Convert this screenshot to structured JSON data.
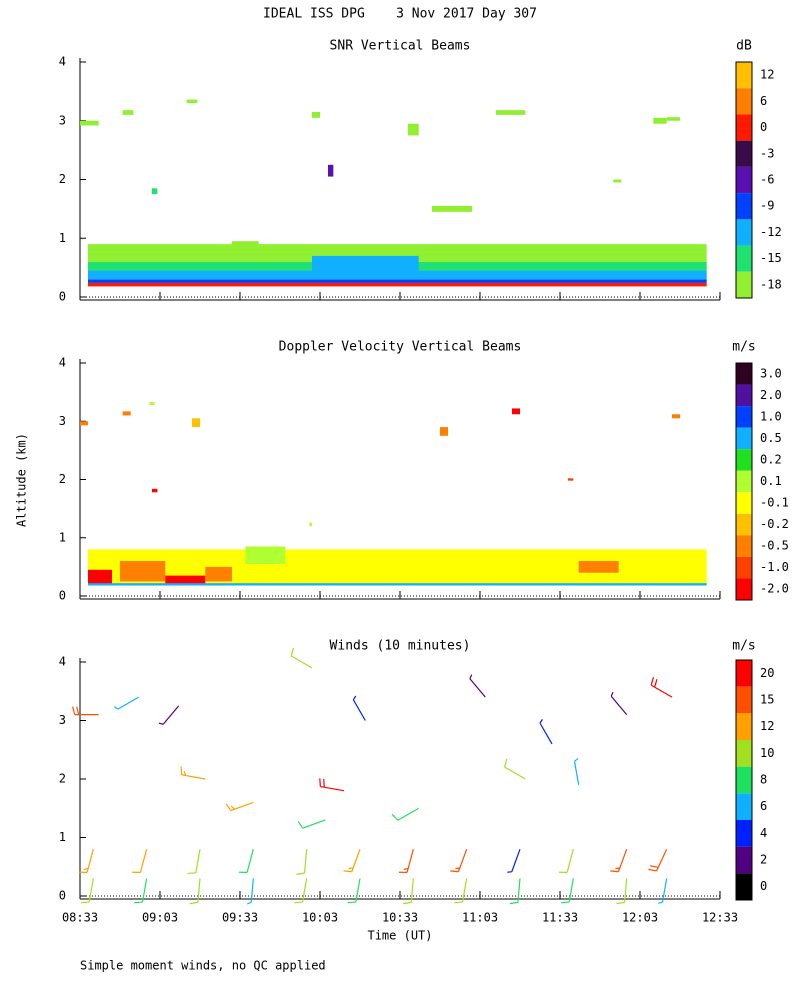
{
  "chart_data": {
    "type": "multi-panel",
    "title": "IDEAL ISS DPG    3 Nov 2017 Day 307",
    "ylabel": "Altitude (km)",
    "xlabel": "Time (UT)",
    "note": "Simple moment winds, no QC applied",
    "xlim": [
      513,
      753
    ],
    "xticks": [
      {
        "value": 513,
        "label": "08:33"
      },
      {
        "value": 543,
        "label": "09:03"
      },
      {
        "value": 573,
        "label": "09:33"
      },
      {
        "value": 603,
        "label": "10:03"
      },
      {
        "value": 633,
        "label": "10:33"
      },
      {
        "value": 663,
        "label": "11:03"
      },
      {
        "value": 693,
        "label": "11:33"
      },
      {
        "value": 723,
        "label": "12:03"
      },
      {
        "value": 753,
        "label": "12:33"
      }
    ],
    "panels": [
      {
        "type": "heatmap",
        "title": "SNR Vertical Beams",
        "unit": "dB",
        "ylim": [
          0,
          4
        ],
        "yticks": [
          0,
          1,
          2,
          3,
          4
        ],
        "colorbar": {
          "levels": [
            12,
            6,
            0,
            -3,
            -6,
            -9,
            -12,
            -15,
            -18
          ],
          "colors": [
            "#ffbf00",
            "#ff7f00",
            "#ff1a00",
            "#3a0a4a",
            "#5a10b0",
            "#0040ff",
            "#10b0ff",
            "#20e070",
            "#90f030"
          ]
        },
        "cells": [
          {
            "t": [
              516,
              748
            ],
            "alt": [
              0.18,
              0.24
            ],
            "value": 2
          },
          {
            "t": [
              516,
              748
            ],
            "alt": [
              0.24,
              0.3
            ],
            "value": -7
          },
          {
            "t": [
              516,
              748
            ],
            "alt": [
              0.3,
              0.45
            ],
            "value": -10
          },
          {
            "t": [
              516,
              748
            ],
            "alt": [
              0.45,
              0.6
            ],
            "value": -13
          },
          {
            "t": [
              516,
              748
            ],
            "alt": [
              0.6,
              0.75
            ],
            "value": -16
          },
          {
            "t": [
              516,
              748
            ],
            "alt": [
              0.75,
              0.9
            ],
            "value": -17
          },
          {
            "t": [
              600,
              640
            ],
            "alt": [
              0.4,
              0.7
            ],
            "value": -10
          },
          {
            "t": [
              570,
              580
            ],
            "alt": [
              0.8,
              0.95
            ],
            "value": -17
          },
          {
            "t": [
              513,
              520
            ],
            "alt": [
              2.92,
              3.0
            ],
            "value": -17
          },
          {
            "t": [
              529,
              533
            ],
            "alt": [
              3.1,
              3.18
            ],
            "value": -17
          },
          {
            "t": [
              540,
              542
            ],
            "alt": [
              1.75,
              1.85
            ],
            "value": -14
          },
          {
            "t": [
              553,
              557
            ],
            "alt": [
              3.3,
              3.36
            ],
            "value": -17
          },
          {
            "t": [
              600,
              603
            ],
            "alt": [
              3.05,
              3.15
            ],
            "value": -17
          },
          {
            "t": [
              606,
              608
            ],
            "alt": [
              2.05,
              2.25
            ],
            "value": -5
          },
          {
            "t": [
              636,
              640
            ],
            "alt": [
              2.75,
              2.95
            ],
            "value": -16
          },
          {
            "t": [
              645,
              660
            ],
            "alt": [
              1.45,
              1.55
            ],
            "value": -17
          },
          {
            "t": [
              669,
              680
            ],
            "alt": [
              3.1,
              3.18
            ],
            "value": -17
          },
          {
            "t": [
              713,
              716
            ],
            "alt": [
              1.95,
              2.0
            ],
            "value": -17
          },
          {
            "t": [
              728,
              733
            ],
            "alt": [
              2.95,
              3.05
            ],
            "value": -17
          },
          {
            "t": [
              733,
              738
            ],
            "alt": [
              3.0,
              3.06
            ],
            "value": -17
          }
        ]
      },
      {
        "type": "heatmap",
        "title": "Doppler Velocity Vertical Beams",
        "unit": "m/s",
        "ylim": [
          0,
          4
        ],
        "yticks": [
          0,
          1,
          2,
          3,
          4
        ],
        "colorbar": {
          "levels": [
            3.0,
            2.0,
            1.0,
            0.5,
            0.2,
            0.1,
            -0.1,
            -0.2,
            -0.5,
            -1.0,
            -2.0
          ],
          "labels": [
            "3.0",
            "2.0",
            "1.0",
            "0.5",
            "0.2",
            "0.1",
            "-0.1",
            "-0.2",
            "-0.5",
            "-1.0",
            "-2.0"
          ],
          "colors": [
            "#300020",
            "#5010a0",
            "#0040ff",
            "#10b0ff",
            "#20e020",
            "#b0ff30",
            "#ffff00",
            "#ffc000",
            "#ff8000",
            "#ff4000",
            "#ff0000"
          ]
        },
        "cells": [
          {
            "t": [
              516,
              748
            ],
            "alt": [
              0.2,
              0.8
            ],
            "value": 0
          },
          {
            "t": [
              516,
              525
            ],
            "alt": [
              0.2,
              0.45
            ],
            "value": -1.5
          },
          {
            "t": [
              528,
              545
            ],
            "alt": [
              0.25,
              0.6
            ],
            "value": -0.3
          },
          {
            "t": [
              545,
              560
            ],
            "alt": [
              0.2,
              0.35
            ],
            "value": -1.5
          },
          {
            "t": [
              560,
              570
            ],
            "alt": [
              0.25,
              0.5
            ],
            "value": -0.3
          },
          {
            "t": [
              575,
              590
            ],
            "alt": [
              0.55,
              0.85
            ],
            "value": 0.15
          },
          {
            "t": [
              700,
              715
            ],
            "alt": [
              0.4,
              0.6
            ],
            "value": -0.3
          },
          {
            "t": [
              516,
              748
            ],
            "alt": [
              0.18,
              0.22
            ],
            "value": 0.7
          },
          {
            "t": [
              513,
              516
            ],
            "alt": [
              2.93,
              3.0
            ],
            "value": -0.3
          },
          {
            "t": [
              529,
              532
            ],
            "alt": [
              3.1,
              3.17
            ],
            "value": -0.3
          },
          {
            "t": [
              539,
              541
            ],
            "alt": [
              3.28,
              3.33
            ],
            "value": 0.15
          },
          {
            "t": [
              540,
              542
            ],
            "alt": [
              1.78,
              1.84
            ],
            "value": -1.5
          },
          {
            "t": [
              555,
              558
            ],
            "alt": [
              2.9,
              3.05
            ],
            "value": -0.15
          },
          {
            "t": [
              599,
              600
            ],
            "alt": [
              1.2,
              1.26
            ],
            "value": 0.15
          },
          {
            "t": [
              648,
              651
            ],
            "alt": [
              2.75,
              2.9
            ],
            "value": -0.3
          },
          {
            "t": [
              675,
              678
            ],
            "alt": [
              3.12,
              3.22
            ],
            "value": -1.5
          },
          {
            "t": [
              696,
              698
            ],
            "alt": [
              1.98,
              2.02
            ],
            "value": -0.7
          },
          {
            "t": [
              735,
              738
            ],
            "alt": [
              3.05,
              3.12
            ],
            "value": -0.3
          }
        ]
      },
      {
        "type": "barbs",
        "title": "Winds (10 minutes)",
        "unit": "m/s",
        "ylim": [
          0,
          4
        ],
        "yticks": [
          0,
          1,
          2,
          3,
          4
        ],
        "colorbar": {
          "levels": [
            20,
            15,
            12,
            10,
            8,
            6,
            4,
            2,
            0
          ],
          "colors": [
            "#ff0000",
            "#ff5000",
            "#ffa000",
            "#a0e020",
            "#20e060",
            "#10b0ff",
            "#0020ff",
            "#500080",
            "#000000"
          ]
        },
        "barbs": [
          {
            "t": [
              518
            ],
            "alt": 0.3,
            "speed": 10,
            "direction": 190
          },
          {
            "t": [
              518
            ],
            "alt": 0.8,
            "speed": 13,
            "direction": 195
          },
          {
            "t": [
              538
            ],
            "alt": 0.3,
            "speed": 9,
            "direction": 190
          },
          {
            "t": [
              538
            ],
            "alt": 0.8,
            "speed": 12,
            "direction": 195
          },
          {
            "t": [
              558
            ],
            "alt": 0.3,
            "speed": 10,
            "direction": 185
          },
          {
            "t": [
              558
            ],
            "alt": 0.8,
            "speed": 11,
            "direction": 190
          },
          {
            "t": [
              578
            ],
            "alt": 0.3,
            "speed": 7,
            "direction": 185
          },
          {
            "t": [
              578
            ],
            "alt": 0.8,
            "speed": 9,
            "direction": 195
          },
          {
            "t": [
              598
            ],
            "alt": 0.3,
            "speed": 11,
            "direction": 190
          },
          {
            "t": [
              598
            ],
            "alt": 0.8,
            "speed": 10,
            "direction": 185
          },
          {
            "t": [
              618
            ],
            "alt": 0.3,
            "speed": 9,
            "direction": 190
          },
          {
            "t": [
              618
            ],
            "alt": 0.8,
            "speed": 13,
            "direction": 200
          },
          {
            "t": [
              638
            ],
            "alt": 0.3,
            "speed": 11,
            "direction": 185
          },
          {
            "t": [
              638
            ],
            "alt": 0.8,
            "speed": 16,
            "direction": 195
          },
          {
            "t": [
              658
            ],
            "alt": 0.3,
            "speed": 10,
            "direction": 190
          },
          {
            "t": [
              658
            ],
            "alt": 0.8,
            "speed": 16,
            "direction": 200
          },
          {
            "t": [
              678
            ],
            "alt": 0.3,
            "speed": 8,
            "direction": 185
          },
          {
            "t": [
              678
            ],
            "alt": 0.8,
            "speed": 5,
            "direction": 200
          },
          {
            "t": [
              698
            ],
            "alt": 0.3,
            "speed": 9,
            "direction": 190
          },
          {
            "t": [
              698
            ],
            "alt": 0.8,
            "speed": 11,
            "direction": 195
          },
          {
            "t": [
              718
            ],
            "alt": 0.3,
            "speed": 10,
            "direction": 185
          },
          {
            "t": [
              718
            ],
            "alt": 0.8,
            "speed": 17,
            "direction": 200
          },
          {
            "t": [
              733
            ],
            "alt": 0.3,
            "speed": 7,
            "direction": 190
          },
          {
            "t": [
              733
            ],
            "alt": 0.8,
            "speed": 18,
            "direction": 205
          },
          {
            "t": [
              520
            ],
            "alt": 3.1,
            "speed": 18,
            "direction": 270
          },
          {
            "t": [
              535
            ],
            "alt": 3.4,
            "speed": 6,
            "direction": 240
          },
          {
            "t": [
              550
            ],
            "alt": 3.25,
            "speed": 3,
            "direction": 220
          },
          {
            "t": [
              560
            ],
            "alt": 2.0,
            "speed": 13,
            "direction": 280
          },
          {
            "t": [
              578
            ],
            "alt": 1.6,
            "speed": 13,
            "direction": 250
          },
          {
            "t": [
              600
            ],
            "alt": 3.9,
            "speed": 11,
            "direction": 300
          },
          {
            "t": [
              605
            ],
            "alt": 1.3,
            "speed": 8,
            "direction": 250
          },
          {
            "t": [
              612
            ],
            "alt": 1.8,
            "speed": 20,
            "direction": 280
          },
          {
            "t": [
              620
            ],
            "alt": 3.0,
            "speed": 4,
            "direction": 330
          },
          {
            "t": [
              640
            ],
            "alt": 1.5,
            "speed": 9,
            "direction": 240
          },
          {
            "t": [
              665
            ],
            "alt": 3.4,
            "speed": 3,
            "direction": 320
          },
          {
            "t": [
              680
            ],
            "alt": 2.0,
            "speed": 10,
            "direction": 300
          },
          {
            "t": [
              690
            ],
            "alt": 2.6,
            "speed": 4,
            "direction": 330
          },
          {
            "t": [
              700
            ],
            "alt": 1.9,
            "speed": 6,
            "direction": 350
          },
          {
            "t": [
              718
            ],
            "alt": 3.1,
            "speed": 3,
            "direction": 320
          },
          {
            "t": [
              735
            ],
            "alt": 3.4,
            "speed": 20,
            "direction": 300
          }
        ]
      }
    ]
  }
}
